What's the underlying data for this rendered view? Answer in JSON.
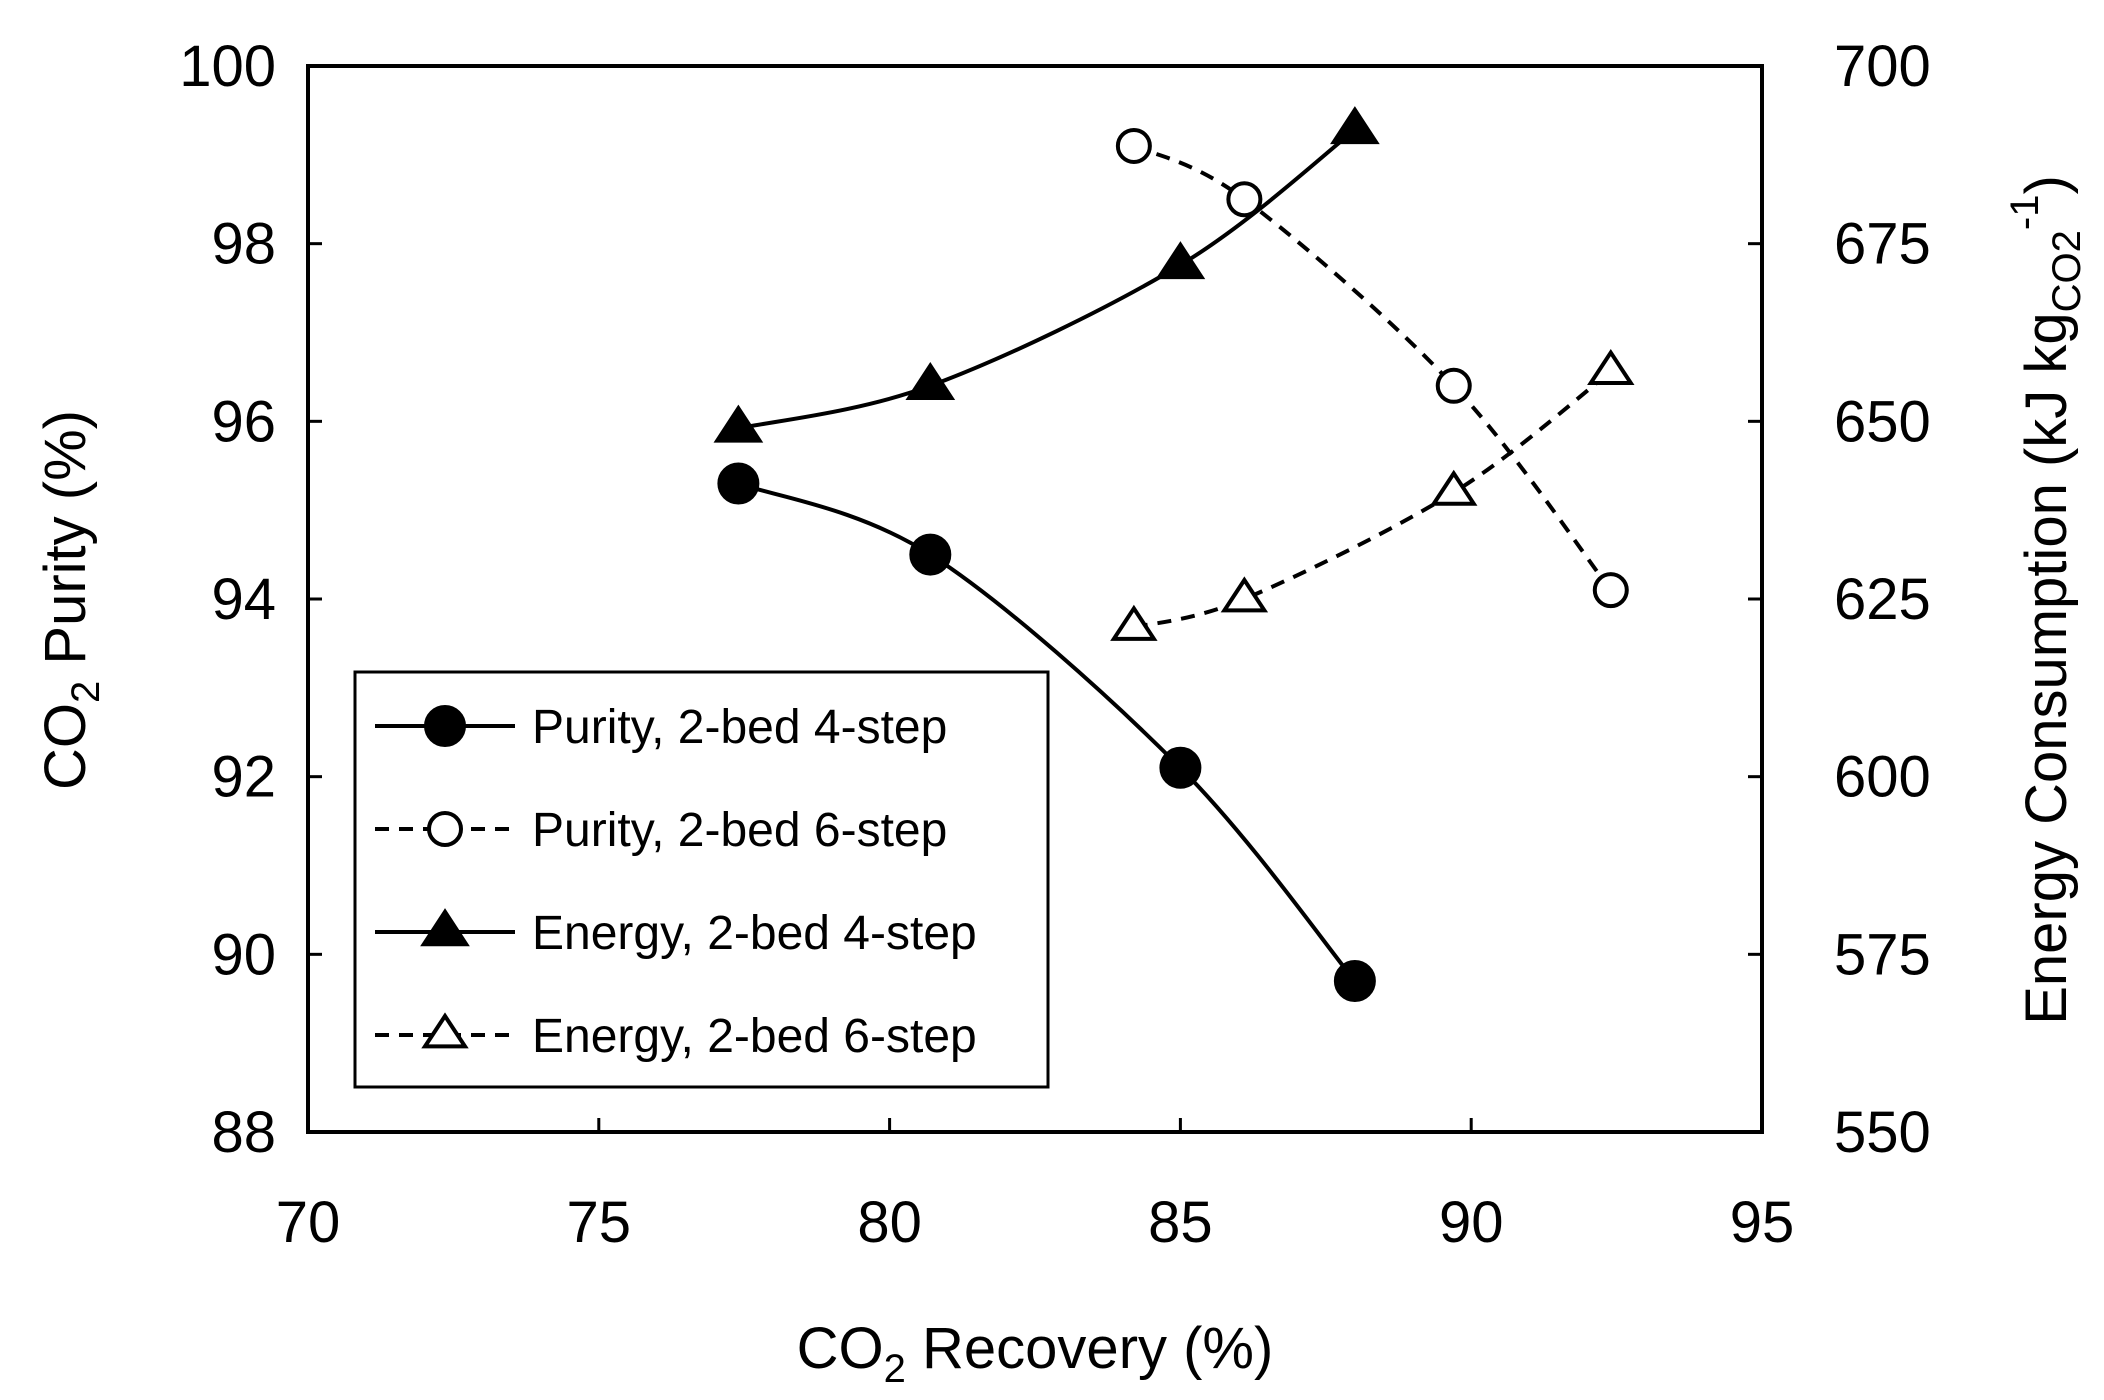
{
  "chart_data": {
    "type": "line",
    "title": "",
    "xlabel": {
      "prefix": "CO",
      "sub": "2",
      "rest": " Recovery (%)"
    },
    "ylabel": {
      "prefix": "CO",
      "sub": "2",
      "rest": " Purity (%)"
    },
    "y2label": {
      "main": "Energy Consumption  (kJ kg",
      "sub": "CO2",
      "sup": "-1",
      "close": ")"
    },
    "xlim": [
      70,
      95
    ],
    "ylim": [
      88,
      100
    ],
    "y2lim": [
      550,
      700
    ],
    "xticks": [
      70,
      75,
      80,
      85,
      90,
      95
    ],
    "yticks": [
      88,
      90,
      92,
      94,
      96,
      98,
      100
    ],
    "y2ticks": [
      550,
      575,
      600,
      625,
      650,
      675,
      700
    ],
    "grid": false,
    "legend_position": "lower-left",
    "series": [
      {
        "name": "Purity, 2-bed 4-step",
        "axis": "left",
        "marker": "circle-filled",
        "line": "solid",
        "x": [
          77.4,
          80.7,
          85.0,
          88.0
        ],
        "y": [
          95.3,
          94.5,
          92.1,
          89.7
        ]
      },
      {
        "name": "Purity, 2-bed 6-step",
        "axis": "left",
        "marker": "circle-open",
        "line": "dashed",
        "x": [
          84.2,
          86.1,
          89.7,
          92.4
        ],
        "y": [
          99.1,
          98.5,
          96.4,
          94.1
        ]
      },
      {
        "name": "Energy, 2-bed 4-step",
        "axis": "right",
        "marker": "triangle-filled",
        "line": "solid",
        "x": [
          77.4,
          80.7,
          85.0,
          88.0
        ],
        "y": [
          649,
          655,
          672,
          691
        ]
      },
      {
        "name": "Energy, 2-bed 6-step",
        "axis": "right",
        "marker": "triangle-open",
        "line": "dashed",
        "x": [
          84.2,
          86.1,
          89.7,
          92.4
        ],
        "y": [
          621,
          625,
          640,
          657
        ]
      }
    ]
  }
}
